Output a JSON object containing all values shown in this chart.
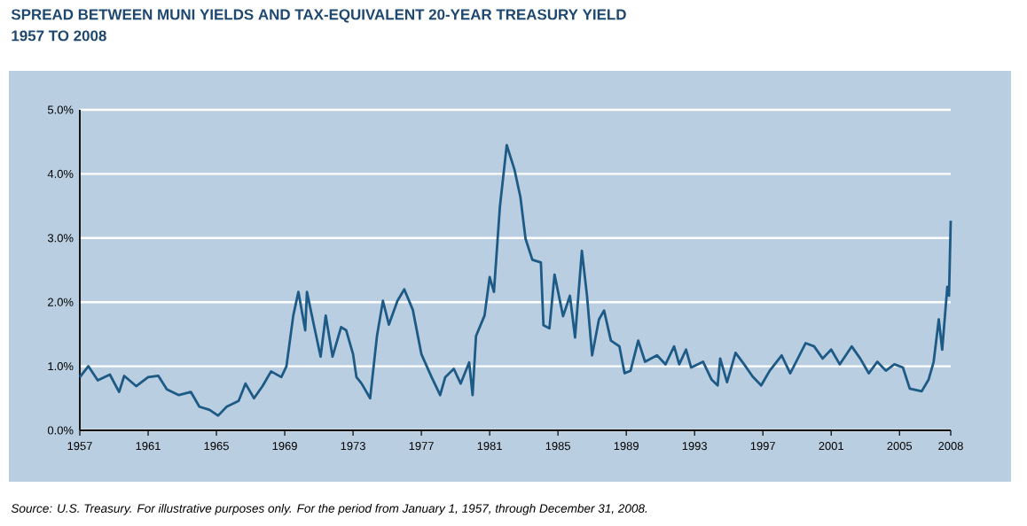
{
  "chart_data": {
    "type": "line",
    "title": "SPREAD BETWEEN MUNI YIELDS AND TAX-EQUIVALENT 20-YEAR TREASURY YIELD",
    "subtitle": "1957 TO 2008",
    "annotations": [
      "Source: U.S. Treasury. For illustrative purposes only. For the period from January 1, 1957, through December 31, 2008."
    ],
    "color": "#1d5a86",
    "x": [
      1957.0,
      1957.5,
      1958.05,
      1958.76,
      1959.3,
      1959.6,
      1960.3,
      1961.0,
      1961.6,
      1962.1,
      1962.8,
      1963.5,
      1964.0,
      1964.6,
      1965.1,
      1965.6,
      1966.3,
      1966.7,
      1967.2,
      1967.7,
      1968.2,
      1968.8,
      1969.1,
      1969.5,
      1969.8,
      1970.2,
      1970.3,
      1970.7,
      1971.1,
      1971.4,
      1971.8,
      1972.3,
      1972.6,
      1973.0,
      1973.2,
      1973.5,
      1974.0,
      1974.4,
      1974.75,
      1975.1,
      1975.6,
      1976.0,
      1976.5,
      1977.0,
      1977.6,
      1978.1,
      1978.4,
      1978.9,
      1979.3,
      1979.8,
      1980.0,
      1980.2,
      1980.7,
      1981.0,
      1981.25,
      1981.6,
      1982.0,
      1982.45,
      1982.8,
      1983.1,
      1983.5,
      1984.0,
      1984.15,
      1984.5,
      1984.8,
      1985.3,
      1985.7,
      1986.0,
      1986.4,
      1986.7,
      1987.0,
      1987.4,
      1987.7,
      1988.1,
      1988.6,
      1988.9,
      1989.25,
      1989.7,
      1990.1,
      1990.8,
      1991.3,
      1991.8,
      1992.1,
      1992.5,
      1992.8,
      1993.5,
      1994.0,
      1994.35,
      1994.5,
      1994.9,
      1995.4,
      1995.9,
      1996.4,
      1996.9,
      1997.4,
      1998.1,
      1998.6,
      1999.5,
      2000.0,
      2000.5,
      2001.0,
      2001.5,
      2002.2,
      2002.7,
      2003.2,
      2003.7,
      2004.2,
      2004.7,
      2005.2,
      2005.6,
      2006.3,
      2006.7,
      2007.0,
      2007.3,
      2007.5,
      2007.8,
      2007.9,
      2008.0
    ],
    "values": [
      0.83,
      1.0,
      0.78,
      0.87,
      0.6,
      0.85,
      0.69,
      0.83,
      0.85,
      0.64,
      0.55,
      0.6,
      0.37,
      0.32,
      0.23,
      0.37,
      0.46,
      0.73,
      0.5,
      0.69,
      0.92,
      0.83,
      1.0,
      1.79,
      2.16,
      1.56,
      2.16,
      1.65,
      1.15,
      1.79,
      1.15,
      1.61,
      1.56,
      1.19,
      0.83,
      0.73,
      0.5,
      1.47,
      2.02,
      1.65,
      2.02,
      2.2,
      1.88,
      1.19,
      0.83,
      0.55,
      0.83,
      0.96,
      0.73,
      1.06,
      0.55,
      1.47,
      1.79,
      2.39,
      2.16,
      3.49,
      4.45,
      4.07,
      3.64,
      2.99,
      2.66,
      2.62,
      1.64,
      1.59,
      2.43,
      1.78,
      2.1,
      1.45,
      2.8,
      2.1,
      1.17,
      1.73,
      1.87,
      1.4,
      1.31,
      0.89,
      0.93,
      1.4,
      1.07,
      1.17,
      1.03,
      1.31,
      1.03,
      1.26,
      0.98,
      1.07,
      0.79,
      0.7,
      1.12,
      0.75,
      1.21,
      1.03,
      0.84,
      0.7,
      0.93,
      1.17,
      0.89,
      1.36,
      1.31,
      1.12,
      1.26,
      1.03,
      1.31,
      1.12,
      0.89,
      1.07,
      0.93,
      1.03,
      0.98,
      0.65,
      0.61,
      0.79,
      1.07,
      1.73,
      1.26,
      2.24,
      2.1,
      3.27
    ],
    "xlim": [
      1957,
      2008
    ],
    "xticks": [
      1957,
      1961,
      1965,
      1969,
      1973,
      1977,
      1981,
      1985,
      1989,
      1993,
      1997,
      2001,
      2005,
      2008
    ],
    "ylim": [
      0,
      5
    ],
    "yticks": [
      {
        "value": 0,
        "label": "0.0%"
      },
      {
        "value": 1,
        "label": "1.0%"
      },
      {
        "value": 2,
        "label": "2.0%"
      },
      {
        "value": 3,
        "label": "3.0%"
      },
      {
        "value": 4,
        "label": "4.0%"
      },
      {
        "value": 5,
        "label": "5.0%"
      }
    ],
    "grid": "y",
    "marker": "none",
    "line_style": "solid"
  }
}
